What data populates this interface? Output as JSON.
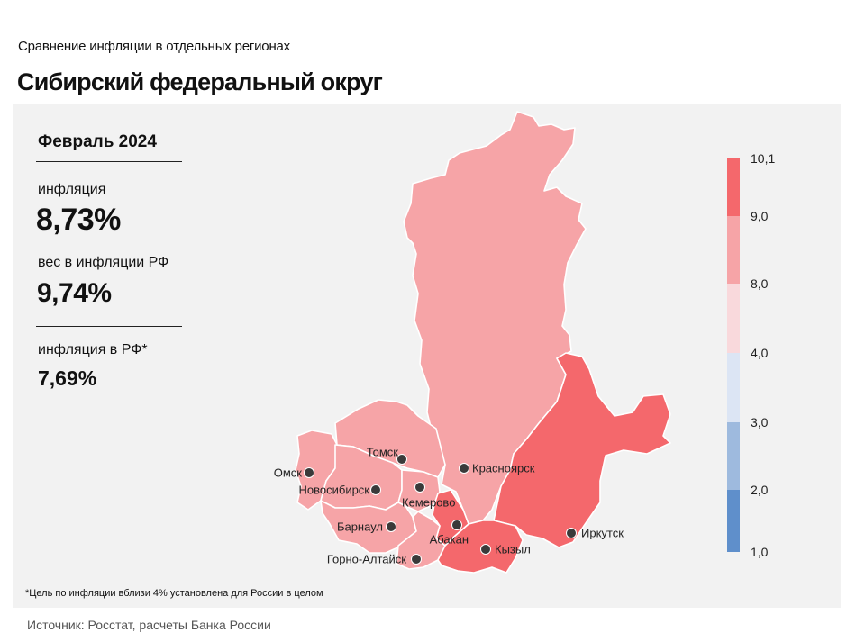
{
  "header": {
    "supertitle": "Сравнение  инфляции  в отдельных  регионах",
    "title": "Сибирский федеральный округ"
  },
  "stats": {
    "period": "Февраль 2024",
    "inflation_label": "инфляция",
    "inflation_value": "8,73%",
    "weight_label": "вес в инфляции  РФ",
    "weight_value": "9,74%",
    "rf_label": "инфляция  в РФ*",
    "rf_value": "7,69%"
  },
  "footnote": "*Цель по инфляции вблизи 4% установлена для России в целом",
  "source": "Источник: Росстат, расчеты Банка России",
  "colors": {
    "bin_9_10": "#f4686c",
    "bin_8_9": "#f6a4a7",
    "bin_4_8": "#f9d9dc",
    "bin_3_4": "#dce5f4",
    "bin_2_3": "#9ebade",
    "bin_1_2": "#5f8fcb",
    "panel": "#f2f2f2",
    "border": "#ffffff"
  },
  "legend": {
    "ticks": [
      "10,1",
      "9,0",
      "8,0",
      "4,0",
      "3,0",
      "2,0",
      "1,0"
    ]
  },
  "cities": [
    {
      "name": "Томск",
      "bin": "8-9"
    },
    {
      "name": "Омск",
      "bin": "8-9"
    },
    {
      "name": "Новосибирск",
      "bin": "8-9"
    },
    {
      "name": "Кемерово",
      "bin": "8-9"
    },
    {
      "name": "Красноярск",
      "bin": "8-9"
    },
    {
      "name": "Барнаул",
      "bin": "8-9"
    },
    {
      "name": "Абакан",
      "bin": "9-10.1"
    },
    {
      "name": "Кызыл",
      "bin": "9-10.1"
    },
    {
      "name": "Иркутск",
      "bin": "9-10.1"
    },
    {
      "name": "Горно-Алтайск",
      "bin": "8-9"
    }
  ]
}
